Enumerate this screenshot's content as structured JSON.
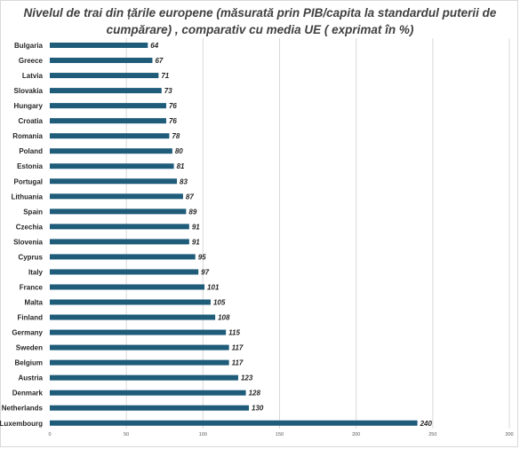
{
  "title_lines": [
    "Nivelul de trai din țările europene (măsurată prin PIB/capita la standardul puterii de",
    "cumpărare) , comparativ cu media UE ( exprimat în %)"
  ],
  "colors": {
    "bar": "#1f5c7a",
    "grid": "#d9d9d9",
    "label": "#262626",
    "tick": "#595959"
  },
  "chart_data": {
    "type": "bar",
    "orientation": "horizontal",
    "title": "Nivelul de trai din țările europene (măsurată prin PIB/capita la standardul puterii de cumpărare) , comparativ cu media UE ( exprimat în %)",
    "categories": [
      "Bulgaria",
      "Greece",
      "Latvia",
      "Slovakia",
      "Hungary",
      "Croatia",
      "Romania",
      "Poland",
      "Estonia",
      "Portugal",
      "Lithuania",
      "Spain",
      "Czechia",
      "Slovenia",
      "Cyprus",
      "Italy",
      "France",
      "Malta",
      "Finland",
      "Germany",
      "Sweden",
      "Belgium",
      "Austria",
      "Denmark",
      "Netherlands",
      "Luxembourg"
    ],
    "values": [
      64,
      67,
      71,
      73,
      76,
      76,
      78,
      80,
      81,
      83,
      87,
      89,
      91,
      91,
      95,
      97,
      101,
      105,
      108,
      115,
      117,
      117,
      123,
      128,
      130,
      240
    ],
    "xlim": [
      0,
      300
    ],
    "xticks": [
      0,
      50,
      100,
      150,
      200,
      250,
      300
    ],
    "grid": true,
    "data_labels": true,
    "legend": "none"
  }
}
